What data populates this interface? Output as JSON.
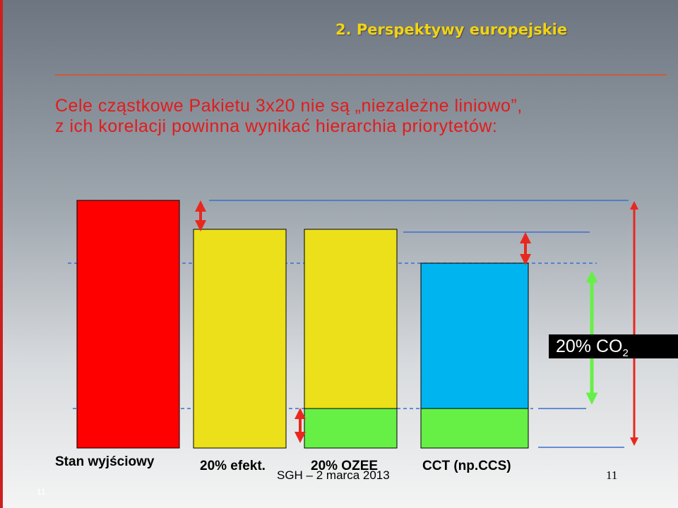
{
  "section_title": "2. Perspektywy europejskie",
  "heading": {
    "line1": "Cele cząstkowe Pakietu 3x20 nie są „niezależne liniowo”,",
    "line2": "z ich korelacji powinna wynikać hierarchia priorytetów:"
  },
  "co2_label": {
    "text": "20% CO",
    "sub": "2"
  },
  "categories": {
    "stan": "Stan wyjściowy",
    "efekt": "20% efekt.",
    "ozee": "20% OZEE",
    "cct": "CCT (np.CCS)"
  },
  "footer": {
    "center": "SGH – 2 marca 2013",
    "page": "11",
    "slide_number": "11"
  },
  "colors": {
    "red": "#ff0000",
    "yellow": "#ebe01a",
    "blue": "#00b4f0",
    "green": "#66f046",
    "heading": "#e31b1b",
    "title": "#f2d410"
  }
}
